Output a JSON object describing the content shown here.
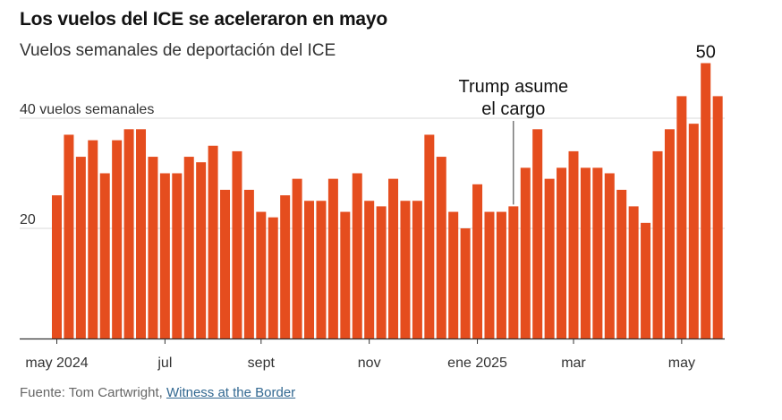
{
  "header": {
    "title": "Los vuelos del ICE se aceleraron en mayo",
    "subtitle": "Vuelos semanales de deportación del ICE"
  },
  "footer": {
    "source_prefix": "Fuente: Tom Cartwright, ",
    "source_link": "Witness at the Border"
  },
  "colors": {
    "bar": "#e54d1e",
    "grid": "#d9d9d9",
    "axis": "#333333",
    "text": "#121212"
  },
  "chart_data": {
    "type": "bar",
    "title": "Los vuelos del ICE se aceleraron en mayo",
    "subtitle": "Vuelos semanales de deportación del ICE",
    "ylim": [
      0,
      52
    ],
    "y_ticks": [
      20,
      40
    ],
    "y_tick_labels": [
      "20",
      "40 vuelos semanales"
    ],
    "x_tick_labels": [
      "may 2024",
      "jul",
      "sept",
      "nov",
      "ene 2025",
      "mar",
      "may"
    ],
    "x_tick_bar_index": [
      0,
      9,
      17,
      26,
      35,
      43,
      52
    ],
    "grid": true,
    "legend": "none",
    "values": [
      26,
      37,
      33,
      36,
      30,
      36,
      38,
      38,
      33,
      30,
      30,
      33,
      32,
      35,
      27,
      34,
      27,
      23,
      22,
      26,
      29,
      25,
      25,
      29,
      23,
      30,
      25,
      24,
      29,
      25,
      25,
      37,
      33,
      23,
      20,
      28,
      23,
      23,
      24,
      31,
      38,
      29,
      31,
      34,
      31,
      31,
      30,
      27,
      24,
      21,
      34,
      38,
      44,
      39,
      50,
      44
    ],
    "annotations": [
      {
        "text_lines": [
          "Trump asume",
          "el cargo"
        ],
        "bar_index": 38
      },
      {
        "text": "50",
        "bar_index": 54
      }
    ]
  }
}
